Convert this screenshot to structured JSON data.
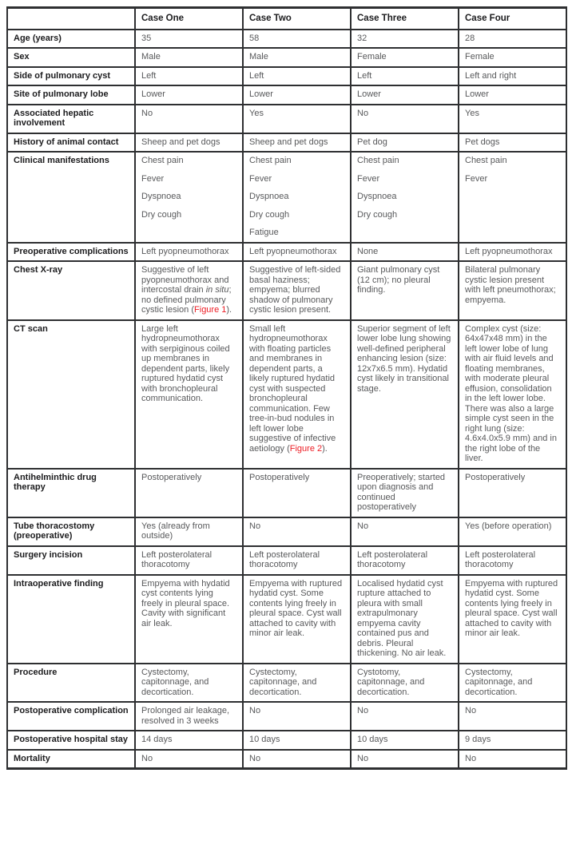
{
  "colors": {
    "figure_ref": "#ed1c24",
    "label_text": "#1c1c1e",
    "body_text": "#58595b",
    "border": "#2e2f31"
  },
  "table": {
    "corner_label": "",
    "columns": [
      "Case One",
      "Case Two",
      "Case Three",
      "Case Four"
    ],
    "rows": [
      {
        "label": "Age (years)",
        "cells": [
          "35",
          "58",
          "32",
          "28"
        ]
      },
      {
        "label": "Sex",
        "cells": [
          "Male",
          "Male",
          "Female",
          "Female"
        ]
      },
      {
        "label": "Side of pulmonary cyst",
        "cells": [
          "Left",
          "Left",
          "Left",
          "Left and right"
        ]
      },
      {
        "label": "Site of pulmonary lobe",
        "cells": [
          "Lower",
          "Lower",
          "Lower",
          "Lower"
        ]
      },
      {
        "label": "Associated hepatic involvement",
        "cells": [
          "No",
          "Yes",
          "No",
          "Yes"
        ]
      },
      {
        "label": "History of animal contact",
        "cells": [
          "Sheep and pet dogs",
          "Sheep and pet dogs",
          "Pet dog",
          "Pet dogs"
        ]
      },
      {
        "label": "Clinical manifestations",
        "cells": [
          [
            "Chest pain",
            "Fever",
            "Dyspnoea",
            "Dry cough"
          ],
          [
            "Chest pain",
            "Fever",
            "Dyspnoea",
            "Dry cough",
            "Fatigue"
          ],
          [
            "Chest pain",
            "Fever",
            "Dyspnoea",
            "Dry cough"
          ],
          [
            "Chest pain",
            "Fever"
          ]
        ]
      },
      {
        "label": "Preoperative complications",
        "cells": [
          "Left pyopneumothorax",
          "Left pyopneumothorax",
          "None",
          "Left pyopneumothorax"
        ]
      },
      {
        "label": "Chest X-ray",
        "cells": [
          [
            [
              "Suggestive of left pyopneumothorax and intercostal drain ",
              {
                "text": "in situ",
                "style": "italic"
              },
              "; no defined pulmonary cystic lesion (",
              {
                "text": "Figure 1",
                "style": "ref"
              },
              ")."
            ]
          ],
          "Suggestive of left-sided basal haziness; empyema; blurred shadow of pulmonary cystic lesion present.",
          "Giant pulmonary cyst (12 cm); no pleural finding.",
          "Bilateral pulmonary cystic lesion present with left pneumothorax; empyema."
        ]
      },
      {
        "label": "CT scan",
        "cells": [
          "Large left hydropneumothorax with serpiginous coiled up membranes in dependent parts, likely ruptured hydatid cyst with bronchopleural communication.",
          [
            [
              "Small left hydropneumothorax with floating particles and membranes in dependent parts, a likely ruptured hydatid cyst with suspected bronchopleural communication. Few tree-in-bud nodules in left lower lobe suggestive of infective aetiology (",
              {
                "text": "Figure 2",
                "style": "ref"
              },
              ")."
            ]
          ],
          "Superior segment of left lower lobe lung showing well-defined peripheral enhancing lesion (size: 12x7x6.5 mm). Hydatid cyst likely in transitional stage.",
          "Complex cyst (size: 64x47x48 mm) in the left lower lobe of lung with air fluid levels and floating membranes, with moderate pleural effusion, consolidation in the left lower lobe. There was also a large simple cyst seen in the right lung (size: 4.6x4.0x5.9 mm) and in the right lobe of the liver."
        ]
      },
      {
        "label": "Antihelminthic drug therapy",
        "cells": [
          "Postoperatively",
          "Postoperatively",
          "Preoperatively; started upon diagnosis and continued postoperatively",
          "Postoperatively"
        ]
      },
      {
        "label": "Tube thoracostomy (preoperative)",
        "cells": [
          "Yes (already from outside)",
          "No",
          "No",
          "Yes (before operation)"
        ]
      },
      {
        "label": "Surgery incision",
        "cells": [
          "Left posterolateral thoracotomy",
          "Left posterolateral thoracotomy",
          "Left posterolateral thoracotomy",
          "Left posterolateral thoracotomy"
        ]
      },
      {
        "label": "Intraoperative finding",
        "cells": [
          "Empyema with hydatid cyst contents lying freely in pleural space. Cavity with significant air leak.",
          "Empyema with ruptured hydatid cyst. Some contents lying freely in pleural space. Cyst wall attached to cavity with minor air leak.",
          "Localised hydatid cyst rupture attached to pleura with small extrapulmonary empyema cavity contained pus and debris. Pleural thickening. No air leak.",
          "Empyema with ruptured hydatid cyst. Some contents lying freely in pleural space. Cyst wall attached to cavity with minor air leak."
        ]
      },
      {
        "label": "Procedure",
        "cells": [
          "Cystectomy, capitonnage, and decortication.",
          "Cystectomy, capitonnage, and decortication.",
          "Cystotomy, capitonnage, and decortication.",
          "Cystectomy, capitonnage, and decortication."
        ]
      },
      {
        "label": "Postoperative complication",
        "cells": [
          "Prolonged air leakage, resolved in 3 weeks",
          "No",
          "No",
          "No"
        ]
      },
      {
        "label": "Postoperative hospital stay",
        "cells": [
          "14 days",
          "10 days",
          "10 days",
          "9 days"
        ]
      },
      {
        "label": "Mortality",
        "cells": [
          "No",
          "No",
          "No",
          "No"
        ]
      }
    ]
  }
}
